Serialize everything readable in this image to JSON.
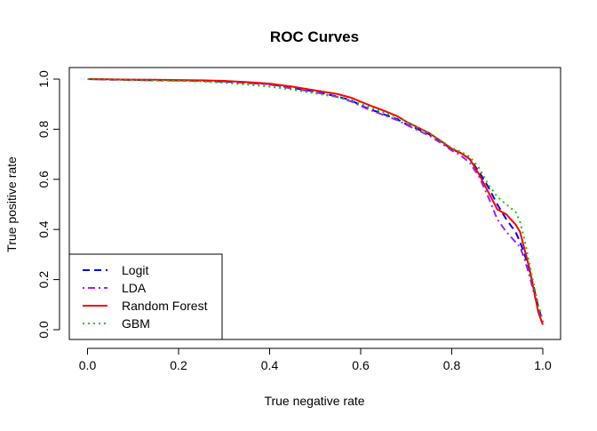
{
  "chart_data": {
    "type": "line",
    "title": "ROC Curves",
    "xlabel": "True negative rate",
    "ylabel": "True positive rate",
    "xlim": [
      0,
      1
    ],
    "ylim": [
      0,
      1
    ],
    "xticks": [
      "0.0",
      "0.2",
      "0.4",
      "0.6",
      "0.8",
      "1.0"
    ],
    "yticks": [
      "0.0",
      "0.2",
      "0.4",
      "0.6",
      "0.8",
      "1.0"
    ],
    "grid": false,
    "legend_position": "bottom-left",
    "series": [
      {
        "name": "Logit",
        "color": "#0000ff",
        "dash": "dashed",
        "points": [
          [
            0.0,
            1.0
          ],
          [
            0.05,
            0.998
          ],
          [
            0.1,
            0.997
          ],
          [
            0.15,
            0.995
          ],
          [
            0.2,
            0.995
          ],
          [
            0.25,
            0.993
          ],
          [
            0.3,
            0.99
          ],
          [
            0.35,
            0.985
          ],
          [
            0.4,
            0.98
          ],
          [
            0.45,
            0.965
          ],
          [
            0.5,
            0.95
          ],
          [
            0.55,
            0.93
          ],
          [
            0.58,
            0.915
          ],
          [
            0.6,
            0.895
          ],
          [
            0.62,
            0.88
          ],
          [
            0.65,
            0.86
          ],
          [
            0.68,
            0.84
          ],
          [
            0.7,
            0.82
          ],
          [
            0.72,
            0.805
          ],
          [
            0.75,
            0.78
          ],
          [
            0.78,
            0.745
          ],
          [
            0.8,
            0.72
          ],
          [
            0.82,
            0.705
          ],
          [
            0.84,
            0.68
          ],
          [
            0.86,
            0.63
          ],
          [
            0.88,
            0.57
          ],
          [
            0.9,
            0.5
          ],
          [
            0.92,
            0.44
          ],
          [
            0.94,
            0.39
          ],
          [
            0.95,
            0.35
          ],
          [
            0.96,
            0.3
          ],
          [
            0.97,
            0.24
          ],
          [
            0.98,
            0.17
          ],
          [
            0.99,
            0.09
          ],
          [
            1.0,
            0.03
          ]
        ]
      },
      {
        "name": "LDA",
        "color": "#a020f0",
        "dash": "dotdash",
        "points": [
          [
            0.0,
            1.0
          ],
          [
            0.05,
            0.998
          ],
          [
            0.1,
            0.996
          ],
          [
            0.15,
            0.995
          ],
          [
            0.2,
            0.994
          ],
          [
            0.25,
            0.993
          ],
          [
            0.3,
            0.99
          ],
          [
            0.35,
            0.985
          ],
          [
            0.4,
            0.978
          ],
          [
            0.45,
            0.962
          ],
          [
            0.5,
            0.948
          ],
          [
            0.55,
            0.928
          ],
          [
            0.58,
            0.91
          ],
          [
            0.6,
            0.893
          ],
          [
            0.62,
            0.877
          ],
          [
            0.65,
            0.857
          ],
          [
            0.68,
            0.836
          ],
          [
            0.7,
            0.818
          ],
          [
            0.72,
            0.8
          ],
          [
            0.75,
            0.775
          ],
          [
            0.78,
            0.74
          ],
          [
            0.8,
            0.715
          ],
          [
            0.82,
            0.695
          ],
          [
            0.84,
            0.665
          ],
          [
            0.86,
            0.61
          ],
          [
            0.88,
            0.53
          ],
          [
            0.9,
            0.44
          ],
          [
            0.92,
            0.39
          ],
          [
            0.94,
            0.35
          ],
          [
            0.95,
            0.33
          ],
          [
            0.96,
            0.28
          ],
          [
            0.97,
            0.22
          ],
          [
            0.98,
            0.15
          ],
          [
            0.99,
            0.08
          ],
          [
            1.0,
            0.02
          ]
        ]
      },
      {
        "name": "Random Forest",
        "color": "#ff0000",
        "dash": "solid",
        "points": [
          [
            0.0,
            1.0
          ],
          [
            0.05,
            0.999
          ],
          [
            0.1,
            0.998
          ],
          [
            0.15,
            0.997
          ],
          [
            0.2,
            0.996
          ],
          [
            0.25,
            0.995
          ],
          [
            0.3,
            0.993
          ],
          [
            0.35,
            0.988
          ],
          [
            0.4,
            0.982
          ],
          [
            0.45,
            0.97
          ],
          [
            0.5,
            0.955
          ],
          [
            0.55,
            0.94
          ],
          [
            0.58,
            0.925
          ],
          [
            0.6,
            0.91
          ],
          [
            0.62,
            0.895
          ],
          [
            0.65,
            0.875
          ],
          [
            0.68,
            0.852
          ],
          [
            0.7,
            0.83
          ],
          [
            0.72,
            0.812
          ],
          [
            0.75,
            0.785
          ],
          [
            0.78,
            0.748
          ],
          [
            0.8,
            0.722
          ],
          [
            0.82,
            0.705
          ],
          [
            0.84,
            0.68
          ],
          [
            0.86,
            0.62
          ],
          [
            0.88,
            0.55
          ],
          [
            0.9,
            0.48
          ],
          [
            0.92,
            0.46
          ],
          [
            0.94,
            0.42
          ],
          [
            0.95,
            0.39
          ],
          [
            0.96,
            0.32
          ],
          [
            0.97,
            0.25
          ],
          [
            0.98,
            0.16
          ],
          [
            0.99,
            0.07
          ],
          [
            1.0,
            0.02
          ]
        ]
      },
      {
        "name": "GBM",
        "color": "#00cd00",
        "dash": "dotted",
        "points": [
          [
            0.0,
            1.0
          ],
          [
            0.05,
            0.998
          ],
          [
            0.1,
            0.996
          ],
          [
            0.15,
            0.994
          ],
          [
            0.2,
            0.993
          ],
          [
            0.25,
            0.99
          ],
          [
            0.3,
            0.985
          ],
          [
            0.35,
            0.978
          ],
          [
            0.4,
            0.97
          ],
          [
            0.45,
            0.958
          ],
          [
            0.5,
            0.943
          ],
          [
            0.55,
            0.928
          ],
          [
            0.58,
            0.915
          ],
          [
            0.6,
            0.9
          ],
          [
            0.62,
            0.888
          ],
          [
            0.65,
            0.868
          ],
          [
            0.68,
            0.848
          ],
          [
            0.7,
            0.83
          ],
          [
            0.72,
            0.81
          ],
          [
            0.75,
            0.785
          ],
          [
            0.78,
            0.75
          ],
          [
            0.8,
            0.725
          ],
          [
            0.82,
            0.71
          ],
          [
            0.84,
            0.69
          ],
          [
            0.86,
            0.645
          ],
          [
            0.88,
            0.58
          ],
          [
            0.9,
            0.53
          ],
          [
            0.92,
            0.5
          ],
          [
            0.94,
            0.47
          ],
          [
            0.95,
            0.43
          ],
          [
            0.96,
            0.36
          ],
          [
            0.97,
            0.27
          ],
          [
            0.98,
            0.18
          ],
          [
            0.99,
            0.1
          ],
          [
            1.0,
            0.04
          ]
        ]
      }
    ]
  }
}
